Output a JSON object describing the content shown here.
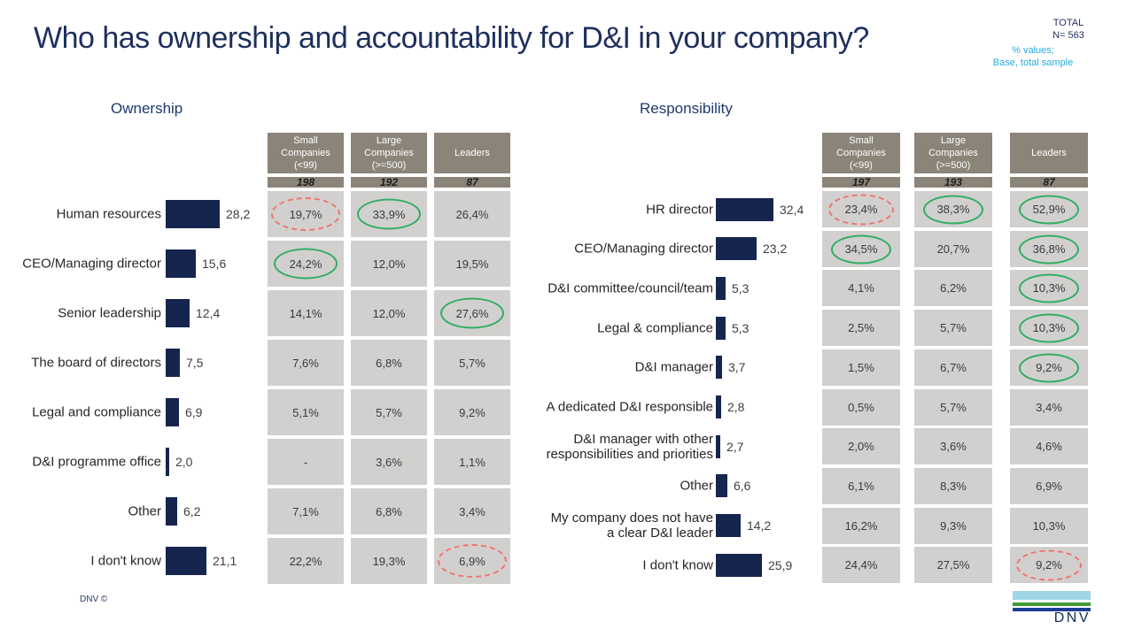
{
  "header": {
    "title": "Who has ownership and accountability for D&I in your company?",
    "total_label": "TOTAL",
    "n_label": "N= 563",
    "note_line1": "% values;",
    "note_line2": "Base, total sample"
  },
  "columns": [
    "Small\nCompanies\n(<99)",
    "Large\nCompanies\n(>=500)",
    "Leaders"
  ],
  "ownership": {
    "title": "Ownership",
    "ns": [
      "198",
      "192",
      "87"
    ],
    "rows": [
      {
        "label": "Human resources",
        "value": 28.2,
        "value_label": "28,2",
        "cells": [
          {
            "text": "19,7%",
            "circle": "red"
          },
          {
            "text": "33,9%",
            "circle": "green"
          },
          {
            "text": "26,4%"
          }
        ]
      },
      {
        "label": "CEO/Managing director",
        "value": 15.6,
        "value_label": "15,6",
        "cells": [
          {
            "text": "24,2%",
            "circle": "green"
          },
          {
            "text": "12,0%"
          },
          {
            "text": "19,5%"
          }
        ]
      },
      {
        "label": "Senior leadership",
        "value": 12.4,
        "value_label": "12,4",
        "cells": [
          {
            "text": "14,1%"
          },
          {
            "text": "12,0%"
          },
          {
            "text": "27,6%",
            "circle": "green"
          }
        ]
      },
      {
        "label": "The board of directors",
        "value": 7.5,
        "value_label": "7,5",
        "cells": [
          {
            "text": "7,6%"
          },
          {
            "text": "6,8%"
          },
          {
            "text": "5,7%"
          }
        ]
      },
      {
        "label": "Legal and compliance",
        "value": 6.9,
        "value_label": "6,9",
        "cells": [
          {
            "text": "5,1%"
          },
          {
            "text": "5,7%"
          },
          {
            "text": "9,2%"
          }
        ]
      },
      {
        "label": "D&I programme office",
        "value": 2.0,
        "value_label": "2,0",
        "cells": [
          {
            "text": "-"
          },
          {
            "text": "3,6%"
          },
          {
            "text": "1,1%"
          }
        ]
      },
      {
        "label": "Other",
        "value": 6.2,
        "value_label": "6,2",
        "cells": [
          {
            "text": "7,1%"
          },
          {
            "text": "6,8%"
          },
          {
            "text": "3,4%"
          }
        ]
      },
      {
        "label": "I don't know",
        "value": 21.1,
        "value_label": "21,1",
        "cells": [
          {
            "text": "22,2%"
          },
          {
            "text": "19,3%"
          },
          {
            "text": "6,9%",
            "circle": "red"
          }
        ]
      }
    ]
  },
  "responsibility": {
    "title": "Responsibility",
    "ns": [
      "197",
      "193",
      "87"
    ],
    "rows": [
      {
        "label": "HR director",
        "value": 32.4,
        "value_label": "32,4",
        "cells": [
          {
            "text": "23,4%",
            "circle": "red"
          },
          {
            "text": "38,3%",
            "circle": "green"
          },
          {
            "text": "52,9%",
            "circle": "green"
          }
        ]
      },
      {
        "label": "CEO/Managing director",
        "value": 23.2,
        "value_label": "23,2",
        "cells": [
          {
            "text": "34,5%",
            "circle": "green"
          },
          {
            "text": "20,7%"
          },
          {
            "text": "36,8%",
            "circle": "green"
          }
        ]
      },
      {
        "label": "D&I committee/council/team",
        "value": 5.3,
        "value_label": "5,3",
        "cells": [
          {
            "text": "4,1%"
          },
          {
            "text": "6,2%"
          },
          {
            "text": "10,3%",
            "circle": "green"
          }
        ]
      },
      {
        "label": "Legal & compliance",
        "value": 5.3,
        "value_label": "5,3",
        "cells": [
          {
            "text": "2,5%"
          },
          {
            "text": "5,7%"
          },
          {
            "text": "10,3%",
            "circle": "green"
          }
        ]
      },
      {
        "label": "D&I manager",
        "value": 3.7,
        "value_label": "3,7",
        "cells": [
          {
            "text": "1,5%"
          },
          {
            "text": "6,7%"
          },
          {
            "text": "9,2%",
            "circle": "green"
          }
        ]
      },
      {
        "label": "A dedicated D&I responsible",
        "value": 2.8,
        "value_label": "2,8",
        "cells": [
          {
            "text": "0,5%"
          },
          {
            "text": "5,7%"
          },
          {
            "text": "3,4%"
          }
        ]
      },
      {
        "label": "D&I manager with other\nresponsibilities and priorities",
        "value": 2.7,
        "value_label": "2,7",
        "cells": [
          {
            "text": "2,0%"
          },
          {
            "text": "3,6%"
          },
          {
            "text": "4,6%"
          }
        ]
      },
      {
        "label": "Other",
        "value": 6.6,
        "value_label": "6,6",
        "cells": [
          {
            "text": "6,1%"
          },
          {
            "text": "8,3%"
          },
          {
            "text": "6,9%"
          }
        ]
      },
      {
        "label": "My company does not have\na clear D&I leader",
        "value": 14.2,
        "value_label": "14,2",
        "cells": [
          {
            "text": "16,2%"
          },
          {
            "text": "9,3%"
          },
          {
            "text": "10,3%"
          }
        ]
      },
      {
        "label": "I don't know",
        "value": 25.9,
        "value_label": "25,9",
        "cells": [
          {
            "text": "24,4%"
          },
          {
            "text": "27,5%"
          },
          {
            "text": "9,2%",
            "circle": "red"
          }
        ]
      }
    ]
  },
  "footer": {
    "copyright": "DNV ©",
    "logo_text": "DNV"
  },
  "colors": {
    "navy": "#16254e",
    "title_navy": "#1e2f5e",
    "note_blue": "#29a9e0",
    "header_grey": "#8b8479",
    "cell_grey": "#d2d0ce",
    "green_circle": "#2fad66",
    "red_circle": "#f0736f",
    "logo_sky": "#9fd6e8",
    "logo_green": "#3f9c35",
    "logo_blue": "#1c3e94"
  },
  "chart_data": [
    {
      "type": "bar",
      "orientation": "horizontal",
      "title": "Ownership",
      "categories": [
        "Human resources",
        "CEO/Managing director",
        "Senior leadership",
        "The board of directors",
        "Legal and compliance",
        "D&I programme office",
        "Other",
        "I don't know"
      ],
      "values": [
        28.2,
        15.6,
        12.4,
        7.5,
        6.9,
        2.0,
        6.2,
        21.1
      ],
      "series": [
        {
          "name": "Total (N=563)",
          "values": [
            28.2,
            15.6,
            12.4,
            7.5,
            6.9,
            2.0,
            6.2,
            21.1
          ]
        },
        {
          "name": "Small Companies (<99)",
          "n": 198,
          "values": [
            19.7,
            24.2,
            14.1,
            7.6,
            5.1,
            null,
            7.1,
            22.2
          ]
        },
        {
          "name": "Large Companies (>=500)",
          "n": 192,
          "values": [
            33.9,
            12.0,
            12.0,
            6.8,
            5.7,
            3.6,
            6.8,
            19.3
          ]
        },
        {
          "name": "Leaders",
          "n": 87,
          "values": [
            26.4,
            19.5,
            27.6,
            5.7,
            9.2,
            1.1,
            3.4,
            6.9
          ]
        }
      ],
      "unit": "%",
      "xlim": [
        0,
        35
      ],
      "grid": false
    },
    {
      "type": "bar",
      "orientation": "horizontal",
      "title": "Responsibility",
      "categories": [
        "HR director",
        "CEO/Managing director",
        "D&I committee/council/team",
        "Legal & compliance",
        "D&I manager",
        "A dedicated D&I responsible",
        "D&I manager with other responsibilities and priorities",
        "Other",
        "My company does not have a clear D&I leader",
        "I don't know"
      ],
      "values": [
        32.4,
        23.2,
        5.3,
        5.3,
        3.7,
        2.8,
        2.7,
        6.6,
        14.2,
        25.9
      ],
      "series": [
        {
          "name": "Total (N=563)",
          "values": [
            32.4,
            23.2,
            5.3,
            5.3,
            3.7,
            2.8,
            2.7,
            6.6,
            14.2,
            25.9
          ]
        },
        {
          "name": "Small Companies (<99)",
          "n": 197,
          "values": [
            23.4,
            34.5,
            4.1,
            2.5,
            1.5,
            0.5,
            2.0,
            6.1,
            16.2,
            24.4
          ]
        },
        {
          "name": "Large Companies (>=500)",
          "n": 193,
          "values": [
            38.3,
            20.7,
            6.2,
            5.7,
            6.7,
            5.7,
            3.6,
            8.3,
            9.3,
            27.5
          ]
        },
        {
          "name": "Leaders",
          "n": 87,
          "values": [
            52.9,
            36.8,
            10.3,
            10.3,
            9.2,
            3.4,
            4.6,
            6.9,
            10.3,
            9.2
          ]
        }
      ],
      "unit": "%",
      "xlim": [
        0,
        55
      ],
      "grid": false
    }
  ]
}
